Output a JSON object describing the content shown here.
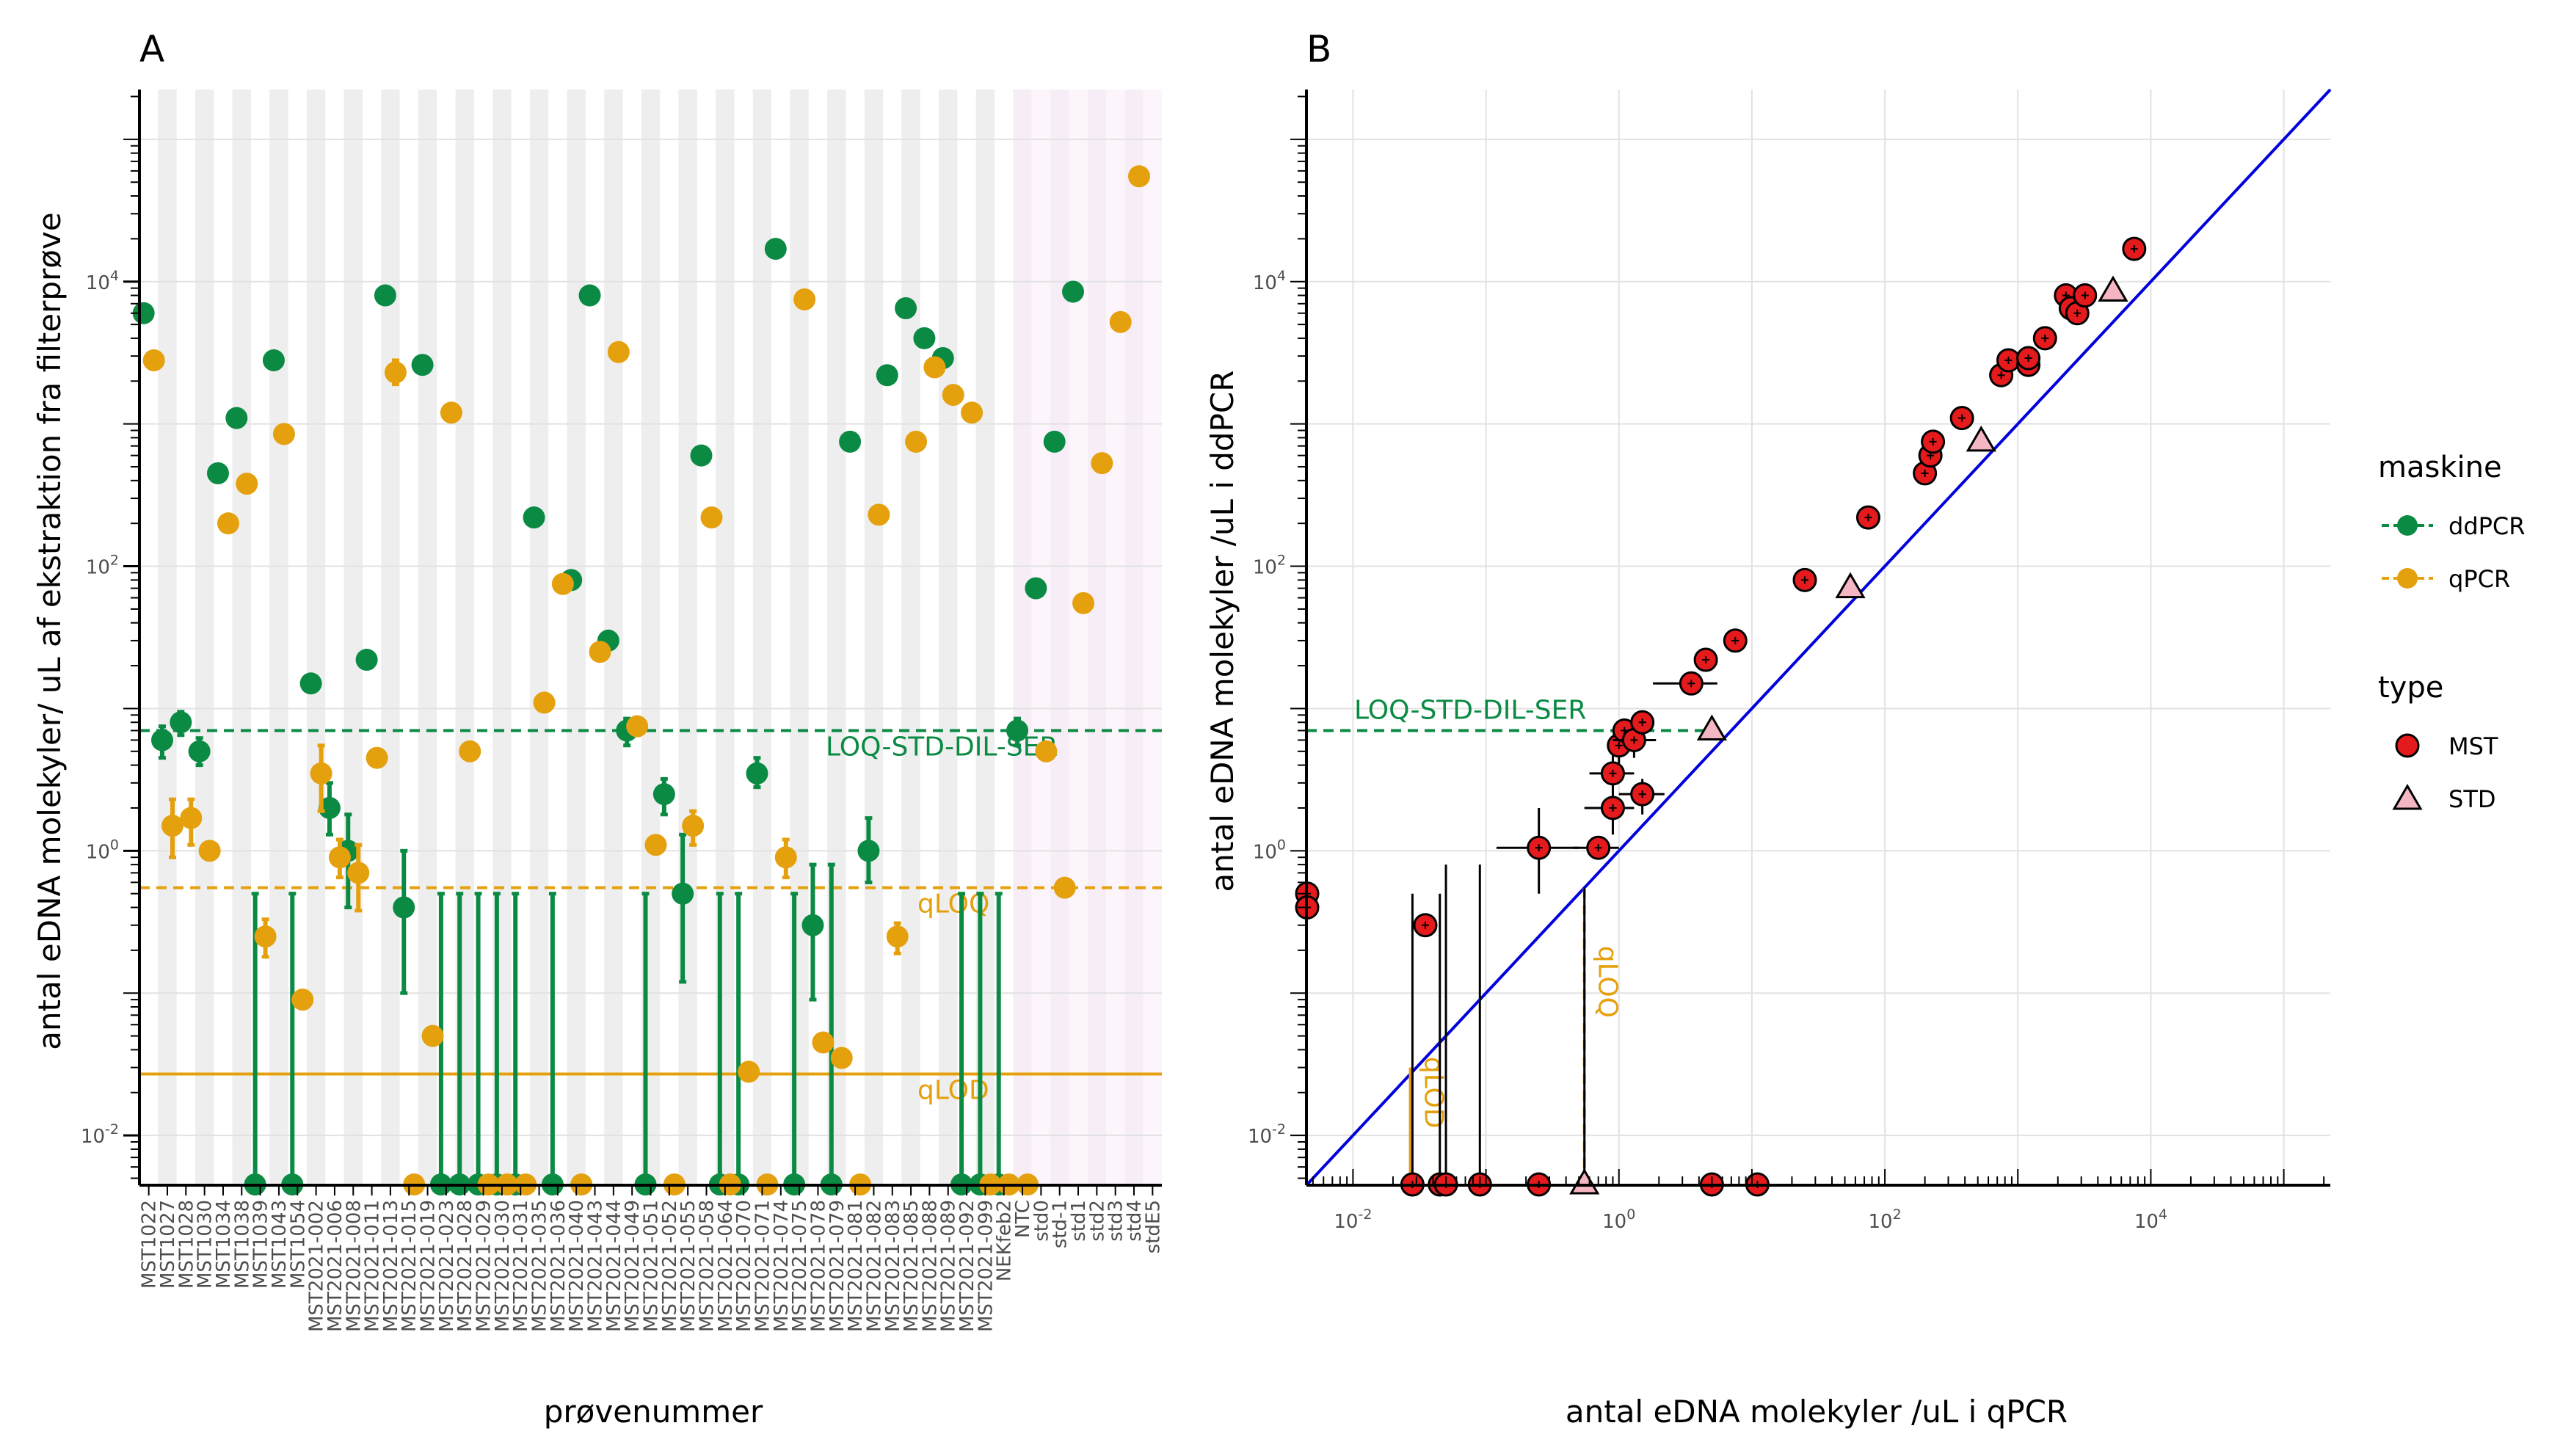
{
  "panels": {
    "a": {
      "tag": "A",
      "xlabel": "prøvenummer",
      "ylabel": "antal eDNA molekyler/ uL af ekstraktion fra filterprøve"
    },
    "b": {
      "tag": "B",
      "xlabel": "antal eDNA molekyler /uL i qPCR",
      "ylabel": "antal eDNA molekyler /uL i ddPCR"
    }
  },
  "legend": {
    "maskine": {
      "title": "maskine",
      "items": [
        {
          "label": "ddPCR",
          "color": "#0b8a44"
        },
        {
          "label": "qPCR",
          "color": "#e5a00d"
        }
      ]
    },
    "type": {
      "title": "type",
      "items": [
        {
          "label": "MST",
          "fill": "#e41a1c",
          "shape": "circle"
        },
        {
          "label": "STD",
          "fill": "#f4b6c2",
          "shape": "triangle"
        }
      ]
    }
  },
  "colors": {
    "ddPCR": "#0b8a44",
    "qPCR": "#e5a00d",
    "identity_line": "#0000dd"
  },
  "chart_data": [
    {
      "type": "scatter",
      "panel": "A",
      "log_y": true,
      "ylim_log10": [
        -2.35,
        1.35
      ],
      "y_ticks": [
        "10^-2",
        "10^0",
        "10^2",
        "10^4"
      ],
      "reference_lines": [
        {
          "label": "LOQ-STD-DIL-SER",
          "y": 7.0,
          "color": "#0b8a44",
          "style": "dashed"
        },
        {
          "label": "qLOQ",
          "y": 0.55,
          "color": "#e5a00d",
          "style": "dashed"
        },
        {
          "label": "qLOD",
          "y": 0.027,
          "color": "#e5a00d",
          "style": "solid"
        }
      ],
      "categories": [
        "MST1022",
        "MST1027",
        "MST1028",
        "MST1030",
        "MST1034",
        "MST1038",
        "MST1039",
        "MST1043",
        "MST1054",
        "MST2021-002",
        "MST2021-006",
        "MST2021-008",
        "MST2021-011",
        "MST2021-013",
        "MST2021-015",
        "MST2021-019",
        "MST2021-023",
        "MST2021-028",
        "MST2021-029",
        "MST2021-030",
        "MST2021-031",
        "MST2021-035",
        "MST2021-036",
        "MST2021-040",
        "MST2021-043",
        "MST2021-044",
        "MST2021-049",
        "MST2021-051",
        "MST2021-052",
        "MST2021-055",
        "MST2021-058",
        "MST2021-064",
        "MST2021-070",
        "MST2021-071",
        "MST2021-074",
        "MST2021-075",
        "MST2021-078",
        "MST2021-079",
        "MST2021-081",
        "MST2021-082",
        "MST2021-083",
        "MST2021-085",
        "MST2021-088",
        "MST2021-089",
        "MST2021-092",
        "MST2021-099",
        "NEKfeb2",
        "NTC",
        "std0",
        "std-1",
        "std1",
        "std2",
        "std3",
        "std4",
        "stdE5"
      ],
      "std_categories_from": "NTC",
      "series": [
        {
          "name": "ddPCR",
          "values": [
            6000,
            6,
            8,
            5,
            450,
            1100,
            0.0045,
            2800,
            0.0045,
            15,
            2,
            1,
            22,
            8000,
            0.4,
            2600,
            0.0045,
            0.0045,
            0.0045,
            0.0045,
            0.0045,
            220,
            0.0045,
            80,
            8000,
            30,
            7,
            0.0045,
            2.5,
            0.5,
            600,
            0.0045,
            0.0045,
            3.5,
            17000,
            0.0045,
            0.3,
            0.0045,
            750,
            1,
            2200,
            6500,
            4000,
            2900,
            0.0045,
            0.0045,
            0.0045,
            7,
            70,
            750,
            8500,
            null,
            null,
            null,
            null
          ],
          "lower": [
            null,
            4.5,
            6.5,
            4,
            null,
            null,
            null,
            null,
            null,
            null,
            1.3,
            0.4,
            null,
            null,
            0.1,
            null,
            null,
            null,
            null,
            null,
            null,
            null,
            null,
            null,
            null,
            null,
            5.5,
            null,
            1.8,
            0.12,
            null,
            null,
            null,
            2.8,
            null,
            null,
            0.09,
            null,
            null,
            0.6,
            null,
            null,
            null,
            null,
            null,
            null,
            null,
            5.5,
            null,
            null,
            null,
            null,
            null,
            null,
            null
          ],
          "upper": [
            null,
            7.5,
            9.5,
            6.2,
            null,
            null,
            0.5,
            null,
            0.5,
            null,
            3,
            1.8,
            null,
            null,
            1,
            null,
            0.5,
            0.5,
            0.5,
            0.5,
            0.5,
            null,
            0.5,
            null,
            null,
            null,
            8.5,
            0.5,
            3.2,
            1.3,
            null,
            0.5,
            0.5,
            4.5,
            null,
            0.5,
            0.8,
            0.8,
            null,
            1.7,
            null,
            null,
            null,
            null,
            0.5,
            0.5,
            0.5,
            8.5,
            null,
            null,
            null,
            null,
            null,
            null,
            null
          ]
        },
        {
          "name": "qPCR",
          "values": [
            2800,
            1.5,
            1.7,
            1,
            200,
            380,
            0.25,
            850,
            0.09,
            3.5,
            0.9,
            0.7,
            4.5,
            2300,
            0.0045,
            0.05,
            1200,
            5,
            0.0045,
            0.0045,
            0.0045,
            11,
            75,
            0.0045,
            25,
            3200,
            7.5,
            1.1,
            0.0045,
            1.5,
            220,
            0.0045,
            0.028,
            0.0045,
            0.9,
            7500,
            0.045,
            0.035,
            0.0045,
            230,
            0.25,
            750,
            2500,
            1600,
            1200,
            0.0045,
            0.0045,
            0.0045,
            5,
            0.55,
            55,
            530,
            5200,
            55000,
            null
          ],
          "lower": [
            null,
            0.9,
            1.1,
            null,
            null,
            null,
            0.18,
            null,
            null,
            1.9,
            0.65,
            0.38,
            null,
            1900,
            null,
            null,
            null,
            null,
            null,
            null,
            null,
            null,
            null,
            null,
            null,
            null,
            6.5,
            null,
            null,
            1.1,
            null,
            null,
            null,
            null,
            0.65,
            null,
            null,
            null,
            null,
            null,
            0.19,
            null,
            null,
            null,
            null,
            null,
            null,
            null,
            null,
            null,
            null,
            null,
            null,
            null,
            null
          ],
          "upper": [
            null,
            2.3,
            2.3,
            null,
            null,
            null,
            0.33,
            null,
            null,
            5.5,
            1.2,
            1.1,
            null,
            2800,
            null,
            null,
            null,
            null,
            null,
            null,
            null,
            null,
            null,
            null,
            null,
            null,
            8.5,
            null,
            null,
            1.9,
            null,
            null,
            null,
            null,
            1.2,
            null,
            null,
            null,
            null,
            null,
            0.31,
            null,
            null,
            null,
            null,
            null,
            null,
            null,
            null,
            null,
            null,
            null,
            null,
            null,
            null
          ]
        }
      ]
    },
    {
      "type": "scatter",
      "panel": "B",
      "log_x": true,
      "log_y": true,
      "xlim_log10": [
        -2.35,
        5.35
      ],
      "ylim_log10": [
        -2.35,
        5.35
      ],
      "x_ticks": [
        "10^-2",
        "10^0",
        "10^2",
        "10^4"
      ],
      "y_ticks": [
        "10^-2",
        "10^0",
        "10^2",
        "10^4"
      ],
      "identity_line": {
        "slope": 1,
        "intercept": 0,
        "color": "#0000dd"
      },
      "reference_lines": [
        {
          "label": "LOQ-STD-DIL-SER",
          "y": 7.0,
          "color": "#0b8a44",
          "style": "dashed",
          "x_end": 5.5
        },
        {
          "label": "qLOQ",
          "x": 0.55,
          "color": "#e5a00d",
          "style": "dashed"
        },
        {
          "label": "qLOD",
          "x": 0.027,
          "color": "#e5a00d",
          "style": "solid"
        }
      ],
      "points": [
        {
          "x": 0.0045,
          "y": 0.5,
          "type": "MST"
        },
        {
          "x": 0.0045,
          "y": 0.4,
          "type": "MST"
        },
        {
          "x": 0.035,
          "y": 0.3,
          "type": "MST"
        },
        {
          "x": 0.25,
          "y": 1.05,
          "type": "MST",
          "xerr": [
            0.12,
            0.5
          ],
          "yerr": [
            0.5,
            2.0
          ]
        },
        {
          "x": 0.7,
          "y": 1.05,
          "type": "MST",
          "xerr": [
            0.45,
            1.0
          ]
        },
        {
          "x": 0.9,
          "y": 2.0,
          "type": "MST",
          "xerr": [
            0.55,
            1.3
          ],
          "yerr": [
            1.3,
            3.0
          ]
        },
        {
          "x": 0.9,
          "y": 3.5,
          "type": "MST",
          "xerr": [
            0.6,
            1.3
          ],
          "yerr": [
            2.5,
            5.0
          ]
        },
        {
          "x": 1.0,
          "y": 5.5,
          "type": "MST",
          "yerr": [
            4.0,
            7.5
          ]
        },
        {
          "x": 1.1,
          "y": 7.0,
          "type": "MST",
          "yerr": [
            5.5,
            8.5
          ]
        },
        {
          "x": 1.3,
          "y": 6.0,
          "type": "MST",
          "xerr": [
            0.9,
            1.9
          ],
          "yerr": [
            4.5,
            7.5
          ]
        },
        {
          "x": 1.5,
          "y": 8.0,
          "type": "MST",
          "yerr": [
            6.5,
            9.5
          ]
        },
        {
          "x": 1.5,
          "y": 2.5,
          "type": "MST",
          "xerr": [
            1.0,
            2.2
          ],
          "yerr": [
            1.8,
            3.2
          ]
        },
        {
          "x": 3.5,
          "y": 15,
          "type": "MST",
          "xerr": [
            1.8,
            5.5
          ]
        },
        {
          "x": 4.5,
          "y": 22,
          "type": "MST"
        },
        {
          "x": 7.5,
          "y": 30,
          "type": "MST"
        },
        {
          "x": 25,
          "y": 80,
          "type": "MST"
        },
        {
          "x": 75,
          "y": 220,
          "type": "MST"
        },
        {
          "x": 200,
          "y": 450,
          "type": "MST"
        },
        {
          "x": 220,
          "y": 600,
          "type": "MST"
        },
        {
          "x": 230,
          "y": 750,
          "type": "MST"
        },
        {
          "x": 380,
          "y": 1100,
          "type": "MST"
        },
        {
          "x": 750,
          "y": 2200,
          "type": "MST"
        },
        {
          "x": 850,
          "y": 2800,
          "type": "MST"
        },
        {
          "x": 1200,
          "y": 2600,
          "type": "MST"
        },
        {
          "x": 1200,
          "y": 2900,
          "type": "MST"
        },
        {
          "x": 1600,
          "y": 4000,
          "type": "MST"
        },
        {
          "x": 2300,
          "y": 8000,
          "type": "MST"
        },
        {
          "x": 2500,
          "y": 6500,
          "type": "MST"
        },
        {
          "x": 2800,
          "y": 6000,
          "type": "MST"
        },
        {
          "x": 3200,
          "y": 8000,
          "type": "MST"
        },
        {
          "x": 7500,
          "y": 17000,
          "type": "MST"
        },
        {
          "x": 0.028,
          "y": 0.0045,
          "type": "MST"
        },
        {
          "x": 0.045,
          "y": 0.0045,
          "type": "MST"
        },
        {
          "x": 0.05,
          "y": 0.0045,
          "type": "MST"
        },
        {
          "x": 0.09,
          "y": 0.0045,
          "type": "MST"
        },
        {
          "x": 0.25,
          "y": 0.0045,
          "type": "MST"
        },
        {
          "x": 5,
          "y": 0.0045,
          "type": "MST"
        },
        {
          "x": 11,
          "y": 0.0045,
          "type": "MST"
        },
        {
          "x": 5,
          "y": 7,
          "type": "STD"
        },
        {
          "x": 55,
          "y": 70,
          "type": "STD"
        },
        {
          "x": 530,
          "y": 750,
          "type": "STD"
        },
        {
          "x": 5200,
          "y": 8500,
          "type": "STD"
        },
        {
          "x": 0.55,
          "y": 0.0045,
          "type": "STD"
        }
      ],
      "vertical_error_bars_at_floor": [
        {
          "x": 0.028,
          "upper": 0.5
        },
        {
          "x": 0.045,
          "upper": 0.5
        },
        {
          "x": 0.05,
          "upper": 0.8
        },
        {
          "x": 0.09,
          "upper": 0.8
        },
        {
          "x": 0.55,
          "upper": 0.55
        }
      ]
    }
  ]
}
